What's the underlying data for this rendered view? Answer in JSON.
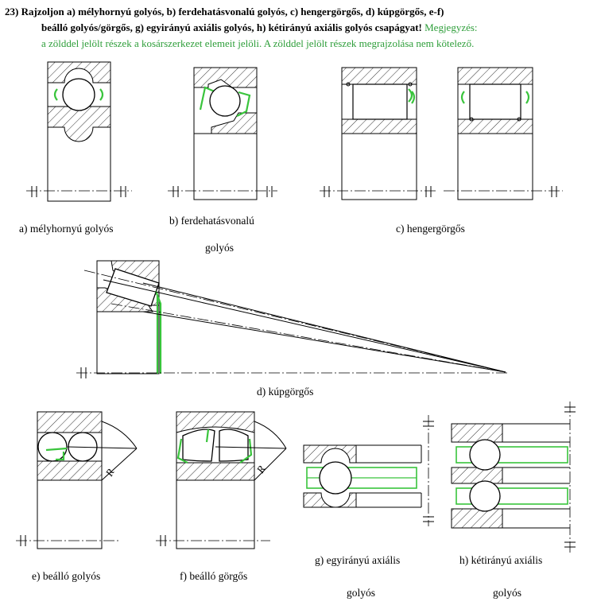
{
  "header": {
    "line1": "23) Rajzoljon a) mélyhornyú golyós, b) ferdehatásvonalú golyós, c) hengergörgős, d) kúpgörgős,  e-f)",
    "line2_bold": "beálló golyós/görgős, g) egyirányú axiális golyós, h) kétirányú axiális golyós csapágyat!",
    "line2_note": " Megjegyzés:",
    "line3_note": "a zölddel jelölt részek a kosárszerkezet elemeit jelöli. A zölddel jelölt részek megrajzolása nem kötelező."
  },
  "labels": {
    "a": "a) mélyhornyú golyós",
    "b1": "b) ferdehatásvonalú",
    "b2": "golyós",
    "c": "c) hengergörgős",
    "d": "d) kúpgörgős",
    "e": "e) beálló golyós",
    "f": "f) beálló görgős",
    "g1": "g) egyirányú axiális",
    "g2": "golyós",
    "h1": "h) kétirányú axiális",
    "h2": "golyós",
    "radius": "R"
  },
  "colors": {
    "cage": "#39c43c",
    "note_text": "#2e9e3a"
  }
}
